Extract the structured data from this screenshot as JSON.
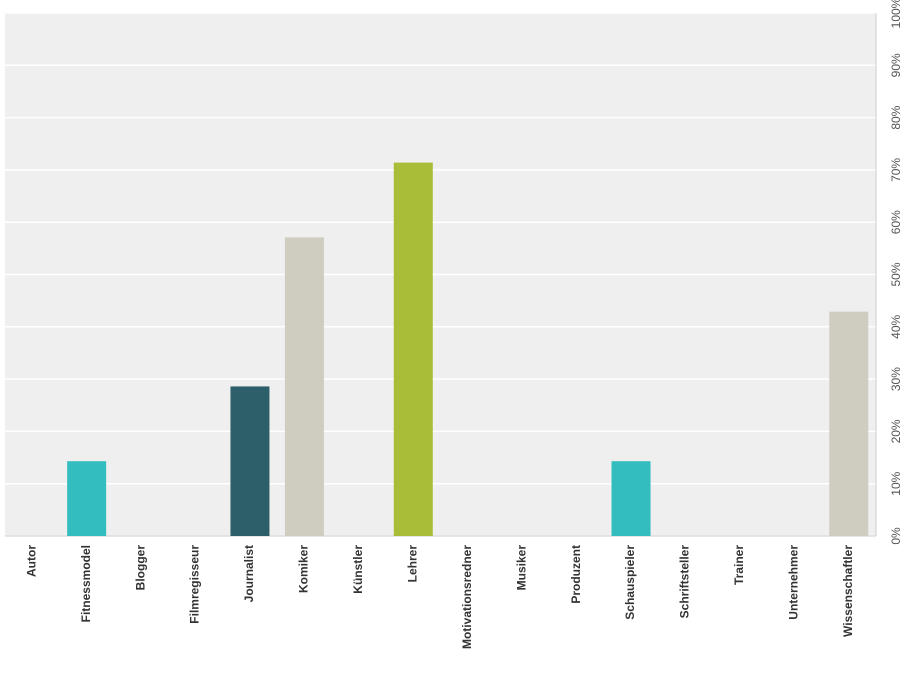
{
  "chart_data": {
    "type": "bar",
    "categories": [
      "Autor",
      "Fitnessmodel",
      "Blogger",
      "Filmregisseur",
      "Journalist",
      "Komiker",
      "Künstler",
      "Lehrer",
      "Motivationsredner",
      "Musiker",
      "Produzent",
      "Schauspieler",
      "Schriftsteller",
      "Trainer",
      "Unternehmer",
      "Wissenschaftler"
    ],
    "values": [
      0,
      14.3,
      0,
      0,
      28.6,
      57.1,
      0,
      71.4,
      0,
      0,
      0,
      14.3,
      0,
      0,
      0,
      42.9
    ],
    "colors": [
      "#2d5f6b",
      "#33bdbf",
      "#cfcdbf",
      "#a9bd38",
      "#2d5f6b",
      "#cfcdbf",
      "#a9bd38",
      "#a9bd38",
      "#2d5f6b",
      "#33bdbf",
      "#cfcdbf",
      "#33bdbf",
      "#2d5f6b",
      "#cfcdbf",
      "#a9bd38",
      "#cfcdbf"
    ],
    "ylim": [
      0,
      100
    ],
    "yticks": [
      {
        "value": 0,
        "label": "0%"
      },
      {
        "value": 10,
        "label": "10%"
      },
      {
        "value": 20,
        "label": "20%"
      },
      {
        "value": 30,
        "label": "30%"
      },
      {
        "value": 40,
        "label": "40%"
      },
      {
        "value": 50,
        "label": "50%"
      },
      {
        "value": 60,
        "label": "60%"
      },
      {
        "value": 70,
        "label": "70%"
      },
      {
        "value": 80,
        "label": "80%"
      },
      {
        "value": 90,
        "label": "90%"
      },
      {
        "value": 100,
        "label": "100%"
      }
    ],
    "grid": true
  }
}
